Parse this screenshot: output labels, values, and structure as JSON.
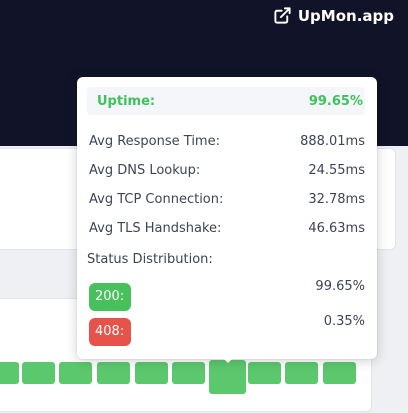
{
  "brand": {
    "name": "UpMon.app",
    "icon": "external-link-icon"
  },
  "tooltip": {
    "uptime": {
      "label": "Uptime:",
      "value": "99.65%"
    },
    "metrics": [
      {
        "label": "Avg Response Time:",
        "value": "888.01ms"
      },
      {
        "label": "Avg DNS Lookup:",
        "value": "24.55ms"
      },
      {
        "label": "Avg TCP Connection:",
        "value": "32.78ms"
      },
      {
        "label": "Avg TLS Handshake:",
        "value": "46.63ms"
      }
    ],
    "distribution_label": "Status Distribution:",
    "statuses": [
      {
        "code": "200:",
        "percent": "99.65%",
        "color": "#48c05b"
      },
      {
        "code": "408:",
        "percent": "0.35%",
        "color": "#e5534b"
      }
    ]
  },
  "colors": {
    "header_bg": "#111328",
    "uptime_green": "#3cc35c",
    "bar_green": "#5cc86e"
  },
  "history": {
    "bar_count": 10,
    "highlighted_index": 5
  }
}
